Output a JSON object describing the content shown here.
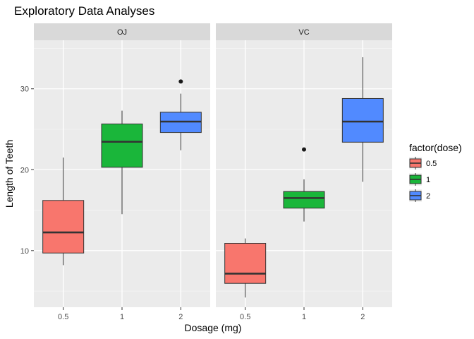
{
  "chart_data": {
    "type": "boxplot",
    "title": "Exploratory Data Analyses",
    "xlabel": "Dosage (mg)",
    "ylabel": "Length of Teeth",
    "categories": [
      "0.5",
      "1",
      "2"
    ],
    "ylim": [
      3,
      36
    ],
    "yticks": [
      10,
      20,
      30
    ],
    "grid": true,
    "legend": {
      "title": "factor(dose)",
      "position": "right",
      "entries": [
        "0.5",
        "1",
        "2"
      ]
    },
    "colors": {
      "0.5": "#f8766d",
      "1": "#1ab63a",
      "2": "#518aff"
    },
    "panels": [
      {
        "label": "OJ",
        "boxes": [
          {
            "category": "0.5",
            "min": 8.2,
            "q1": 9.7,
            "median": 12.25,
            "q3": 16.2,
            "max": 21.5,
            "outliers": []
          },
          {
            "category": "1",
            "min": 14.5,
            "q1": 20.3,
            "median": 23.45,
            "q3": 25.65,
            "max": 27.3,
            "outliers": []
          },
          {
            "category": "2",
            "min": 22.4,
            "q1": 24.6,
            "median": 25.95,
            "q3": 27.1,
            "max": 29.4,
            "outliers": [
              30.9
            ]
          }
        ]
      },
      {
        "label": "VC",
        "boxes": [
          {
            "category": "0.5",
            "min": 4.2,
            "q1": 5.95,
            "median": 7.15,
            "q3": 10.9,
            "max": 11.5,
            "outliers": []
          },
          {
            "category": "1",
            "min": 13.6,
            "q1": 15.25,
            "median": 16.5,
            "q3": 17.3,
            "max": 18.8,
            "outliers": [
              22.5
            ]
          },
          {
            "category": "2",
            "min": 18.5,
            "q1": 23.4,
            "median": 25.95,
            "q3": 28.8,
            "max": 33.9,
            "outliers": []
          }
        ]
      }
    ]
  }
}
